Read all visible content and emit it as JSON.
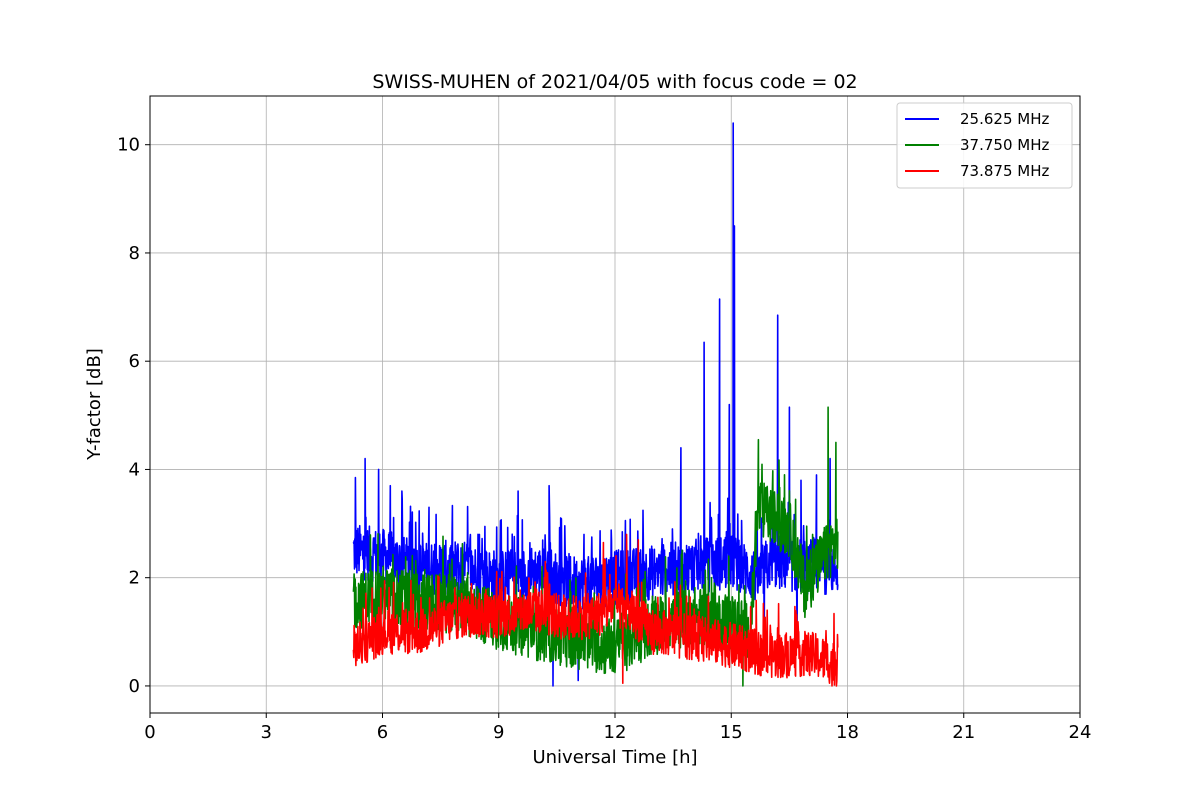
{
  "chart_data": {
    "type": "line",
    "title": "SWISS-MUHEN of 2021/04/05 with focus code = 02",
    "xlabel": "Universal Time [h]",
    "ylabel": "Y-factor [dB]",
    "xlim": [
      0,
      24
    ],
    "ylim": [
      -0.5,
      10.9
    ],
    "xticks": [
      0,
      3,
      6,
      9,
      12,
      15,
      18,
      21,
      24
    ],
    "yticks": [
      0,
      2,
      4,
      6,
      8,
      10
    ],
    "grid": true,
    "legend_position": "top-right",
    "series": [
      {
        "name": "25.625 MHz",
        "color": "#0000ff",
        "base": [
          [
            5.25,
            2.5
          ],
          [
            6.0,
            2.4
          ],
          [
            7.0,
            2.15
          ],
          [
            8.0,
            2.2
          ],
          [
            9.0,
            2.0
          ],
          [
            10.0,
            2.1
          ],
          [
            11.0,
            1.9
          ],
          [
            12.0,
            2.0
          ],
          [
            13.0,
            2.1
          ],
          [
            14.0,
            2.2
          ],
          [
            15.0,
            2.3
          ],
          [
            15.7,
            2.0
          ],
          [
            16.0,
            2.3
          ],
          [
            17.0,
            2.2
          ],
          [
            17.75,
            2.2
          ]
        ],
        "spread": 0.85,
        "peaks": [
          [
            5.3,
            3.85
          ],
          [
            5.55,
            4.2
          ],
          [
            5.9,
            4.0
          ],
          [
            6.2,
            3.7
          ],
          [
            6.5,
            3.6
          ],
          [
            7.2,
            3.3
          ],
          [
            9.5,
            3.6
          ],
          [
            10.3,
            3.7
          ],
          [
            11.2,
            2.8
          ],
          [
            13.7,
            4.4
          ],
          [
            14.3,
            6.35
          ],
          [
            14.7,
            7.15
          ],
          [
            14.95,
            5.2
          ],
          [
            15.05,
            10.4
          ],
          [
            15.08,
            8.5
          ],
          [
            16.2,
            6.85
          ],
          [
            16.5,
            5.15
          ],
          [
            16.8,
            3.8
          ],
          [
            17.2,
            3.9
          ],
          [
            17.55,
            4.2
          ]
        ],
        "dips": [
          [
            10.4,
            0.0
          ],
          [
            11.05,
            0.1
          ],
          [
            15.85,
            0.9
          ],
          [
            16.7,
            0.95
          ]
        ]
      },
      {
        "name": "37.750 MHz",
        "color": "#008000",
        "base": [
          [
            5.25,
            1.55
          ],
          [
            6.0,
            1.7
          ],
          [
            7.0,
            1.55
          ],
          [
            8.0,
            1.5
          ],
          [
            9.0,
            1.2
          ],
          [
            10.0,
            1.0
          ],
          [
            11.0,
            0.85
          ],
          [
            12.0,
            0.7
          ],
          [
            13.0,
            1.1
          ],
          [
            14.0,
            1.3
          ],
          [
            15.0,
            1.2
          ],
          [
            15.5,
            1.0
          ],
          [
            15.7,
            3.3
          ],
          [
            16.5,
            2.9
          ],
          [
            16.9,
            1.8
          ],
          [
            17.4,
            2.4
          ],
          [
            17.75,
            2.7
          ]
        ],
        "spread": 0.9,
        "peaks": [
          [
            15.7,
            4.55
          ],
          [
            17.5,
            5.15
          ],
          [
            17.7,
            4.5
          ]
        ],
        "dips": [
          [
            15.3,
            0.0
          ]
        ]
      },
      {
        "name": "73.875 MHz",
        "color": "#ff0000",
        "base": [
          [
            5.25,
            0.7
          ],
          [
            6.0,
            1.0
          ],
          [
            7.0,
            1.0
          ],
          [
            8.0,
            1.3
          ],
          [
            9.0,
            1.3
          ],
          [
            10.0,
            1.4
          ],
          [
            10.7,
            1.25
          ],
          [
            11.5,
            1.3
          ],
          [
            12.0,
            1.5
          ],
          [
            12.5,
            1.3
          ],
          [
            13.0,
            1.0
          ],
          [
            14.0,
            0.9
          ],
          [
            15.0,
            0.75
          ],
          [
            16.0,
            0.55
          ],
          [
            17.0,
            0.6
          ],
          [
            17.75,
            0.4
          ]
        ],
        "spread": 0.7,
        "peaks": [
          [
            12.3,
            2.8
          ],
          [
            12.6,
            2.7
          ],
          [
            11.7,
            2.65
          ],
          [
            10.2,
            2.3
          ]
        ],
        "dips": [
          [
            12.2,
            0.05
          ],
          [
            17.6,
            0.0
          ]
        ]
      }
    ]
  }
}
